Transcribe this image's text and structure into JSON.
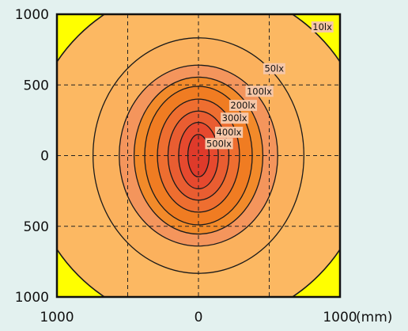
{
  "chart_data": {
    "type": "contour",
    "x_ticks": [
      {
        "value": -1000,
        "label": "1000"
      },
      {
        "value": 0,
        "label": "0"
      },
      {
        "value": 1000,
        "label": "1000"
      }
    ],
    "y_ticks": [
      {
        "value": 1000,
        "label": "1000"
      },
      {
        "value": 500,
        "label": "500"
      },
      {
        "value": 0,
        "label": "0"
      },
      {
        "value": -500,
        "label": "500"
      },
      {
        "value": -1000,
        "label": "1000"
      }
    ],
    "x_unit": "(mm)",
    "xlim": [
      -1000,
      1000
    ],
    "ylim": [
      -1000,
      1000
    ],
    "grid": true,
    "outer_fill": "#ffff00",
    "contours": [
      {
        "level": 10,
        "label": "10lx",
        "rx": 1200,
        "ry": 1200,
        "fill": "#fcb862"
      },
      {
        "level": 50,
        "label": "50lx",
        "rx": 745,
        "ry": 833,
        "fill": "#fbb15d"
      },
      {
        "level": 100,
        "label": "100lx",
        "rx": 560,
        "ry": 640,
        "fill": "#f4955c"
      },
      {
        "level": 150,
        "label": "",
        "rx": 455,
        "ry": 555,
        "fill": "#f28a2a"
      },
      {
        "level": 200,
        "label": "200lx",
        "rx": 380,
        "ry": 490,
        "fill": "#f07c22"
      },
      {
        "level": 300,
        "label": "300lx",
        "rx": 290,
        "ry": 400,
        "fill": "#ee6e30"
      },
      {
        "level": 400,
        "label": "400lx",
        "rx": 215,
        "ry": 315,
        "fill": "#e95d31"
      },
      {
        "level": 500,
        "label": "500lx",
        "rx": 140,
        "ry": 235,
        "fill": "#e6492e"
      },
      {
        "level": 600,
        "label": "",
        "rx": 75,
        "ry": 150,
        "fill": "#df3a2a"
      }
    ],
    "label_positions": [
      {
        "label": "10lx",
        "x": 875,
        "y": 910
      },
      {
        "label": "50lx",
        "x": 535,
        "y": 615
      },
      {
        "label": "100lx",
        "x": 430,
        "y": 455
      },
      {
        "label": "200lx",
        "x": 315,
        "y": 355
      },
      {
        "label": "300lx",
        "x": 255,
        "y": 265
      },
      {
        "label": "400lx",
        "x": 215,
        "y": 165
      },
      {
        "label": "500lx",
        "x": 145,
        "y": 85
      }
    ]
  },
  "colors": {
    "background": "#e3f1ef",
    "contour_line": "#1a1a1a",
    "grid": "#222222",
    "label_bg": "#f6c7a8"
  }
}
